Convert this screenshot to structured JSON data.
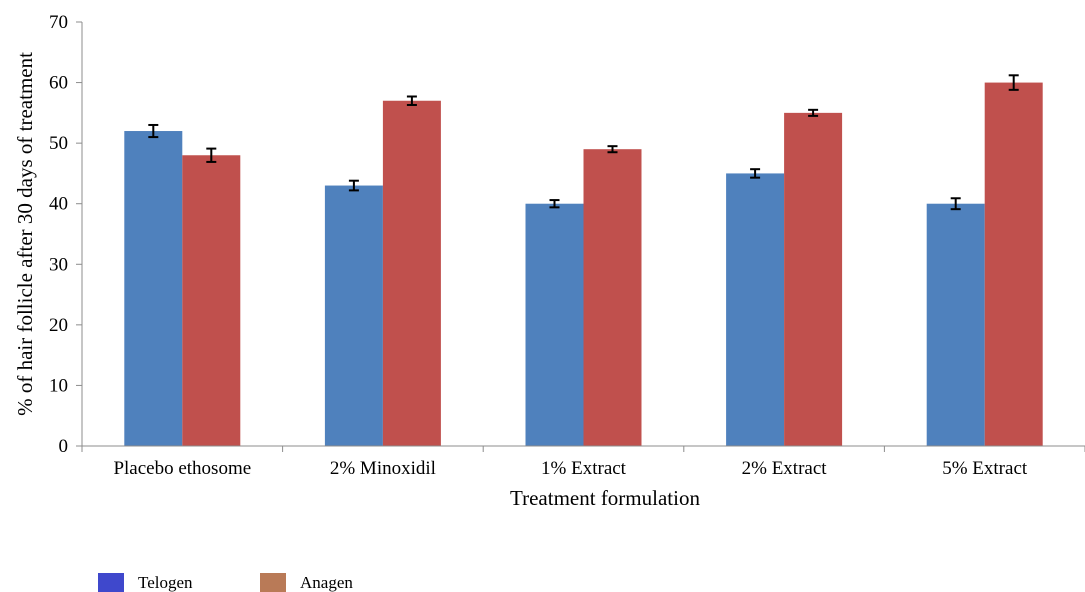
{
  "chart_data": {
    "type": "bar",
    "title": "",
    "xlabel": "Treatment formulation",
    "ylabel": "% of hair follicle after 30 days of treatment",
    "ylim": [
      0,
      70
    ],
    "yticks": [
      0,
      10,
      20,
      30,
      40,
      50,
      60,
      70
    ],
    "categories": [
      "Placebo ethosome",
      "2% Minoxidil",
      "1% Extract",
      "2% Extract",
      "5% Extract"
    ],
    "series": [
      {
        "name": "Telogen",
        "color": "#4F81BD",
        "legend_color": "#3F48CC",
        "values": [
          52,
          43,
          40,
          45,
          40
        ],
        "errors": [
          1.0,
          0.8,
          0.6,
          0.7,
          0.9
        ]
      },
      {
        "name": "Anagen",
        "color": "#C0504D",
        "legend_color": "#B97A57",
        "values": [
          48,
          57,
          49,
          55,
          60
        ],
        "errors": [
          1.1,
          0.7,
          0.5,
          0.5,
          1.2
        ]
      }
    ],
    "grid": false,
    "legend_position": "bottom-left"
  }
}
